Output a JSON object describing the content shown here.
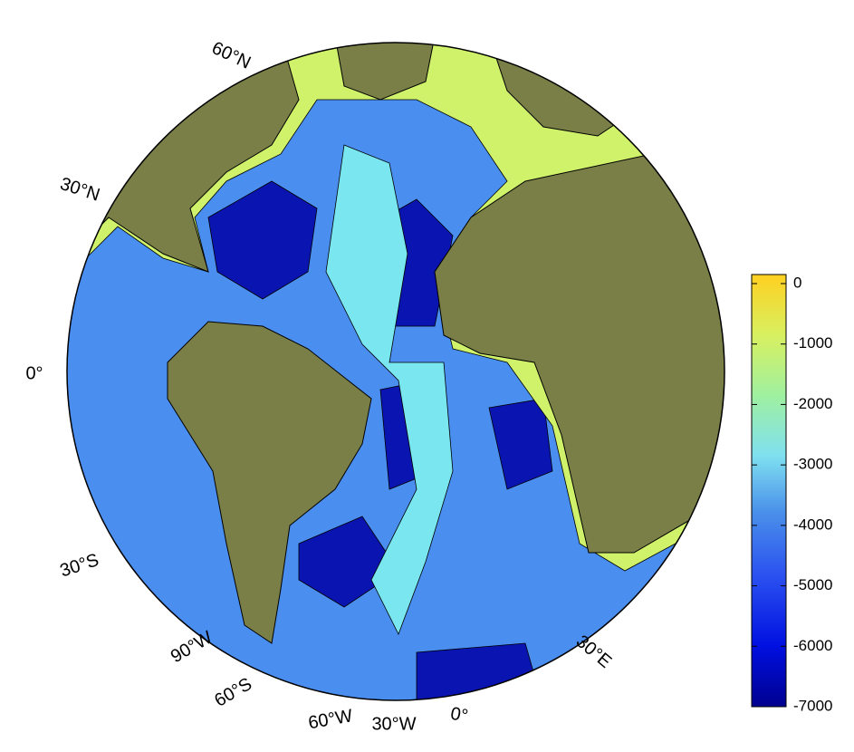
{
  "map": {
    "graticule_labels": [
      "60°N",
      "30°N",
      "0°",
      "30°S",
      "60°S",
      "90°W",
      "60°W",
      "30°W",
      "0°",
      "30°E"
    ]
  },
  "colorbar": {
    "lim": [
      -7000,
      150
    ],
    "ticks": [
      0,
      -1000,
      -2000,
      -3000,
      -4000,
      -5000,
      -6000,
      -7000
    ]
  }
}
